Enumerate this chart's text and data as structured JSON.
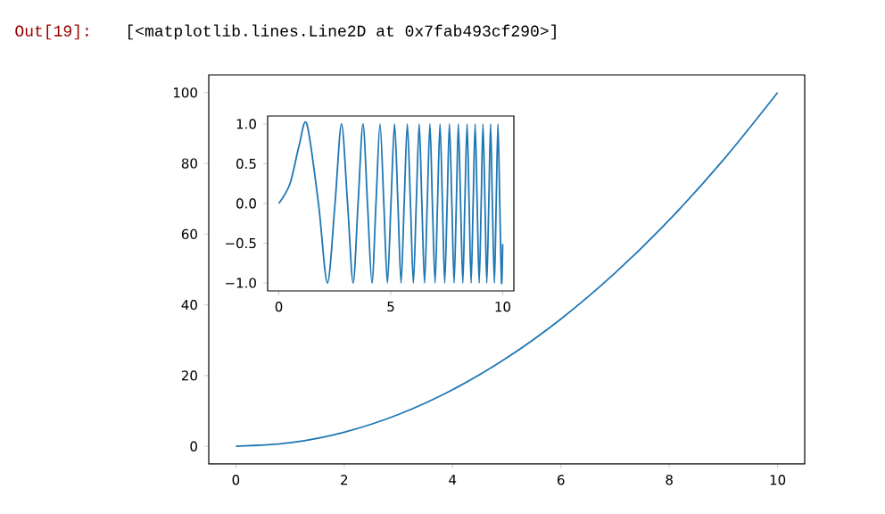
{
  "chart_data": [
    {
      "type": "line",
      "x": [
        0,
        1,
        2,
        3,
        4,
        5,
        6,
        7,
        8,
        9,
        10
      ],
      "series": [
        {
          "color": "#1f77b4",
          "values": [
            0,
            1,
            4,
            9,
            16,
            25,
            36,
            49,
            64,
            81,
            100
          ]
        }
      ],
      "xlim": [
        -0.5,
        10.5
      ],
      "ylim": [
        -5,
        105
      ],
      "xticks": [
        0,
        2,
        4,
        6,
        8,
        10
      ],
      "yticks": [
        0,
        20,
        40,
        60,
        80,
        100
      ],
      "annotations": [
        "Out[19]:",
        "[<matplotlib.lines.Line2D at 0x7fab493cf290>]"
      ]
    },
    {
      "type": "line",
      "x": [
        0,
        0.5,
        0.9,
        1.25,
        1.77,
        2.17,
        2.51,
        2.8,
        3.07,
        3.32,
        3.54,
        3.76,
        3.96,
        4.16,
        4.34,
        4.52,
        4.69,
        4.85,
        5.01,
        5.17,
        5.32,
        5.46,
        5.6,
        5.74,
        5.88,
        6.01,
        6.14,
        6.27,
        6.39,
        6.51,
        6.63,
        6.75,
        6.86,
        6.98,
        7.09,
        7.2,
        7.31,
        7.41,
        7.52,
        7.62,
        7.73,
        7.83,
        7.93,
        8.02,
        8.12,
        8.22,
        8.31,
        8.41,
        8.5,
        8.59,
        8.68,
        8.77,
        8.86,
        8.95,
        9.04,
        9.12,
        9.21,
        9.29,
        9.38,
        9.46,
        9.54,
        9.63,
        9.71,
        9.79,
        9.87,
        9.95,
        10
      ],
      "series": [
        {
          "color": "#1f77b4",
          "values": [
            0,
            0.25,
            0.72,
            1,
            0,
            -1,
            0,
            1,
            0,
            -1,
            0,
            1,
            0,
            -1,
            0,
            1,
            0,
            -1,
            0,
            1,
            0,
            -1,
            0,
            1,
            0,
            -1,
            0,
            1,
            0,
            -1,
            0,
            1,
            0,
            -1,
            0,
            1,
            0,
            -1,
            0,
            1,
            0,
            -1,
            0,
            1,
            0,
            -1,
            0,
            1,
            0,
            -1,
            0,
            1,
            0,
            -1,
            0,
            1,
            0,
            -1,
            0,
            1,
            0,
            -1,
            0,
            1,
            0,
            -1,
            -0.51
          ]
        }
      ],
      "xlim": [
        -0.5,
        10.5
      ],
      "ylim": [
        -1.1,
        1.1
      ],
      "xticks": [
        0,
        5,
        10
      ],
      "yticks": [
        {
          "value": -1,
          "label": "−1.0"
        },
        {
          "value": -0.5,
          "label": "−0.5"
        },
        {
          "value": 0,
          "label": "0.0"
        },
        {
          "value": 0.5,
          "label": "0.5"
        },
        {
          "value": 1,
          "label": "1.0"
        }
      ],
      "grid": false
    }
  ]
}
